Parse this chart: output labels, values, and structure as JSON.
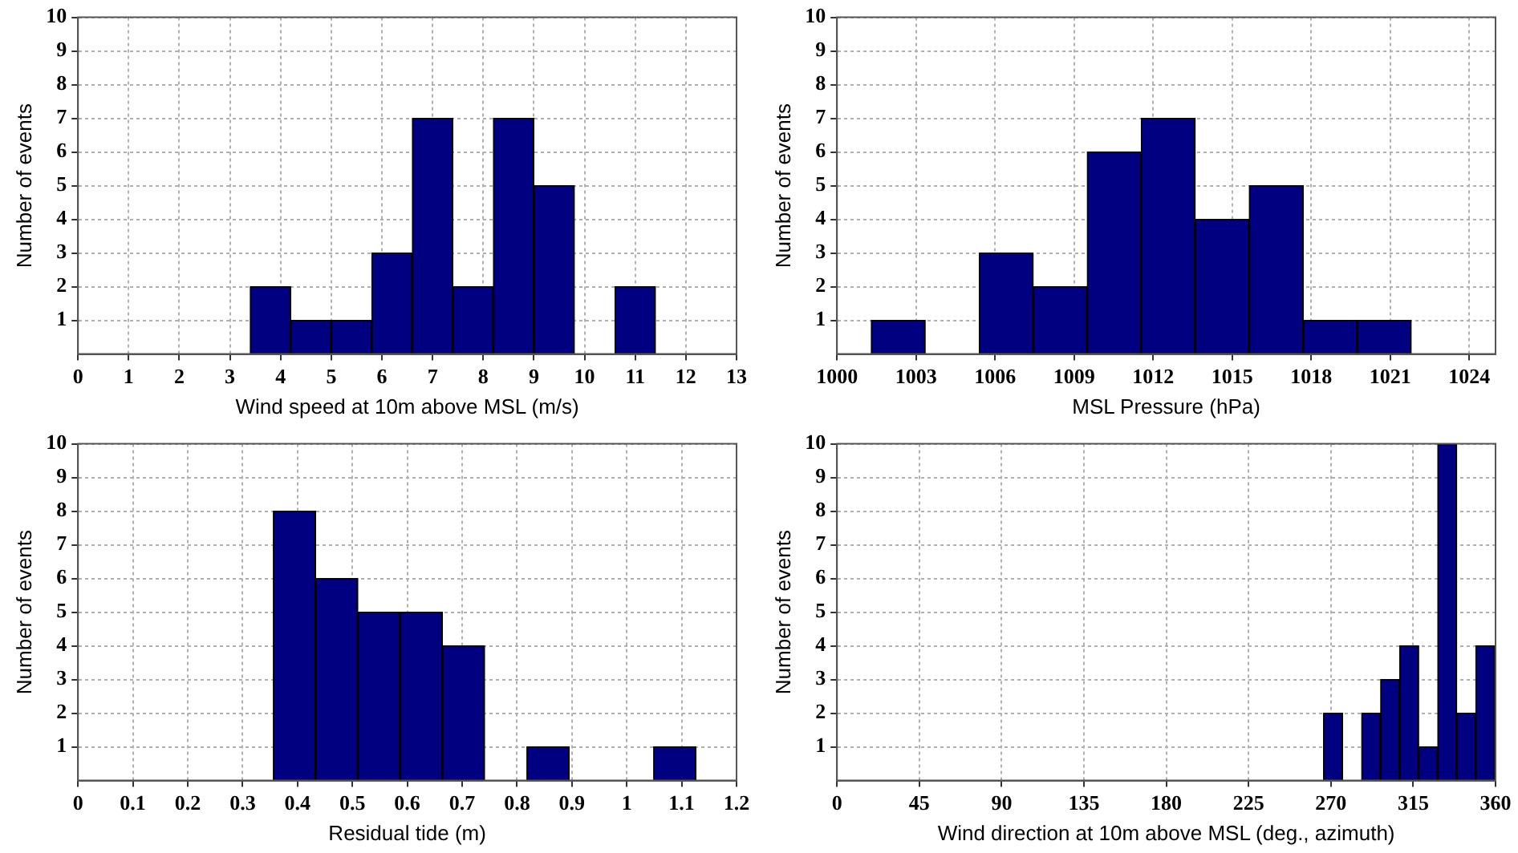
{
  "chart_data": [
    {
      "type": "histogram",
      "xlabel": "Wind speed at 10m above MSL (m/s)",
      "ylabel": "Number of events",
      "color": "#000080",
      "bins": [
        3.4,
        4.2,
        5.0,
        5.8,
        6.6,
        7.4,
        8.2,
        9.0,
        9.8,
        10.6,
        11.4
      ],
      "values": [
        2,
        1,
        1,
        3,
        7,
        2,
        7,
        5,
        0,
        2
      ],
      "xlim": [
        0,
        13
      ],
      "xticks": [
        0,
        1,
        2,
        3,
        4,
        5,
        6,
        7,
        8,
        9,
        10,
        11,
        12,
        13
      ],
      "ylim": [
        0,
        10
      ],
      "yticks": [
        1,
        2,
        3,
        4,
        5,
        6,
        7,
        8,
        9,
        10
      ],
      "grid": true
    },
    {
      "type": "histogram",
      "xlabel": "MSL Pressure (hPa)",
      "ylabel": "Number of events",
      "color": "#000080",
      "bins": [
        1001.3,
        1003.35,
        1005.4,
        1007.45,
        1009.5,
        1011.55,
        1013.6,
        1015.65,
        1017.7,
        1019.75,
        1021.8
      ],
      "values": [
        1,
        0,
        3,
        2,
        6,
        7,
        4,
        5,
        1,
        1
      ],
      "xlim": [
        1000,
        1025
      ],
      "xticks": [
        1000,
        1003,
        1006,
        1009,
        1012,
        1015,
        1018,
        1021,
        1024
      ],
      "ylim": [
        0,
        10
      ],
      "yticks": [
        1,
        2,
        3,
        4,
        5,
        6,
        7,
        8,
        9,
        10
      ],
      "grid": true
    },
    {
      "type": "histogram",
      "xlabel": "Residual tide (m)",
      "ylabel": "Number of events",
      "color": "#000080",
      "bins": [
        0.356,
        0.433,
        0.51,
        0.587,
        0.664,
        0.741,
        0.818,
        0.895,
        0.972,
        1.049,
        1.126
      ],
      "values": [
        8,
        6,
        5,
        5,
        4,
        0,
        1,
        0,
        0,
        1
      ],
      "xlim": [
        0,
        1.2
      ],
      "xticks": [
        0,
        0.1,
        0.2,
        0.3,
        0.4,
        0.5,
        0.6,
        0.7,
        0.8,
        0.9,
        1,
        1.1,
        1.2
      ],
      "ylim": [
        0,
        10
      ],
      "yticks": [
        1,
        2,
        3,
        4,
        5,
        6,
        7,
        8,
        9,
        10
      ],
      "grid": true
    },
    {
      "type": "histogram",
      "xlabel": "Wind direction at 10m above MSL (deg., azimuth)",
      "ylabel": "Number of events",
      "color": "#000080",
      "bins": [
        266,
        276.4,
        286.8,
        297.2,
        307.6,
        318,
        328.4,
        338.8,
        349.2,
        359.6
      ],
      "values": [
        2,
        0,
        2,
        3,
        4,
        1,
        10,
        2,
        4
      ],
      "xlim": [
        0,
        360
      ],
      "xticks": [
        0,
        45,
        90,
        135,
        180,
        225,
        270,
        315,
        360
      ],
      "ylim": [
        0,
        10
      ],
      "yticks": [
        1,
        2,
        3,
        4,
        5,
        6,
        7,
        8,
        9,
        10
      ],
      "grid": true
    }
  ]
}
